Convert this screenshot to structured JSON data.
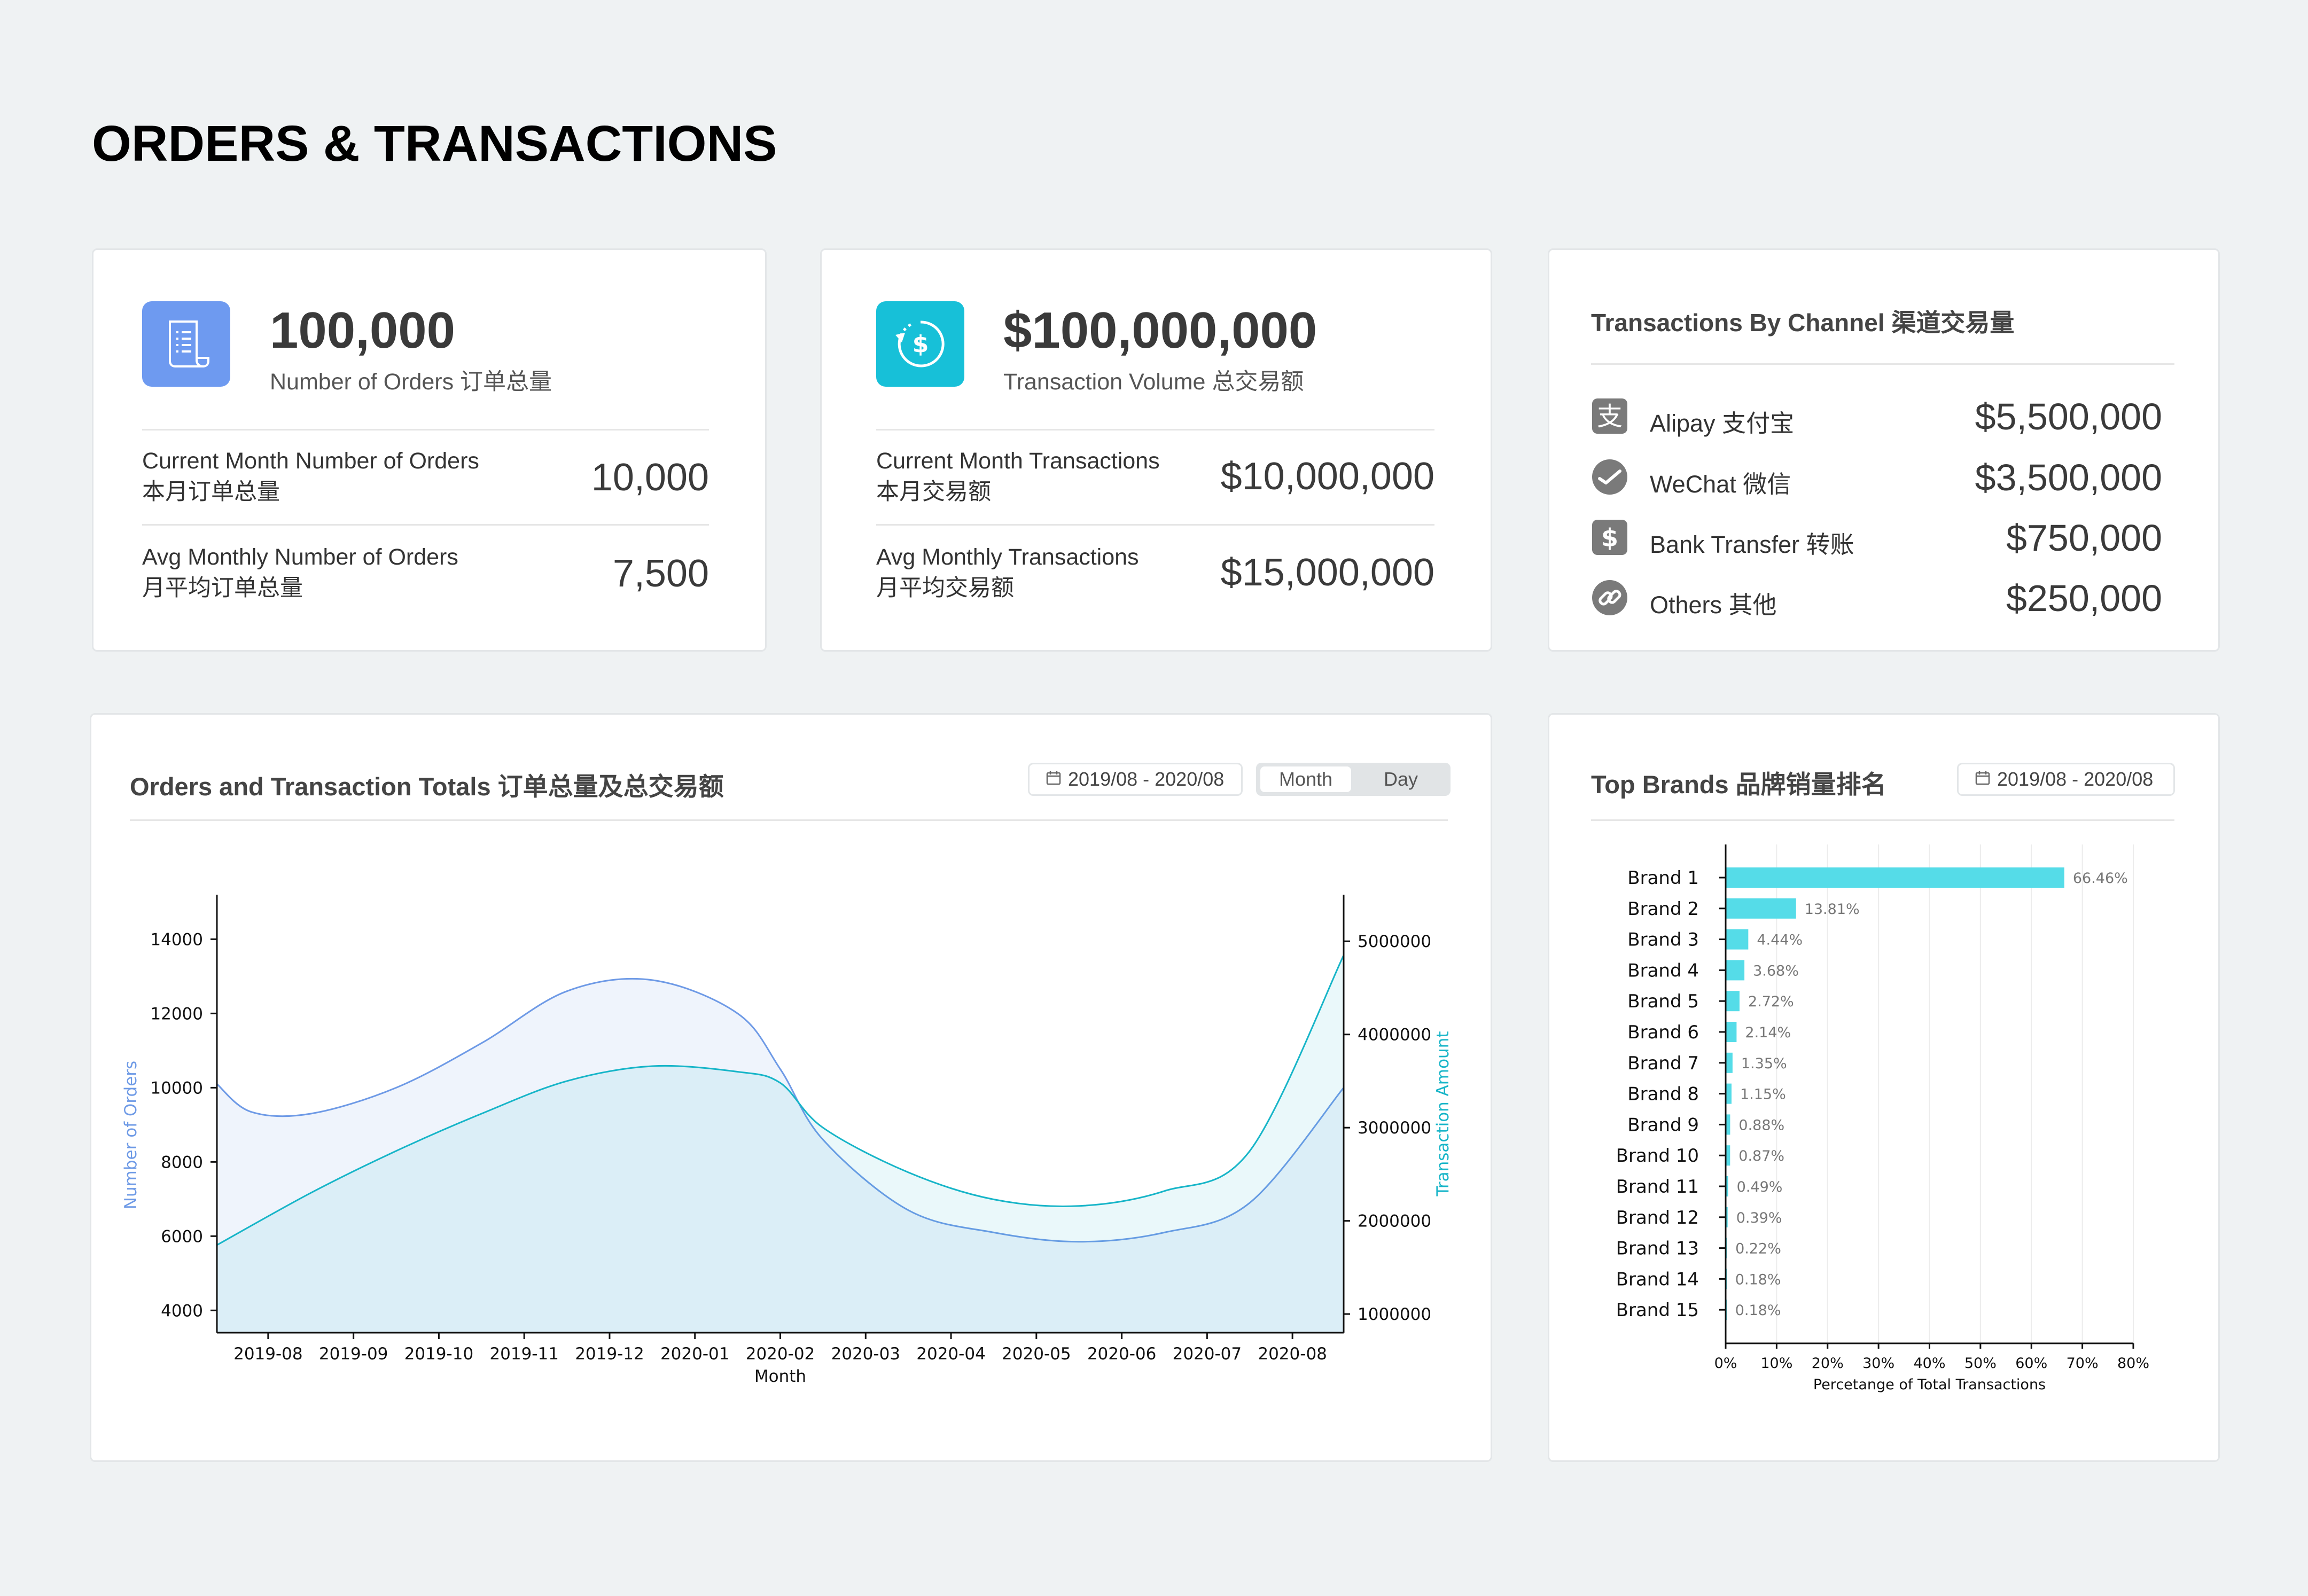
{
  "page_title": "ORDERS & TRANSACTIONS",
  "orders_card": {
    "total": "100,000",
    "total_label": "Number of Orders 订单总量",
    "rows": [
      {
        "label_en": "Current Month Number of Orders",
        "label_zh": "本月订单总量",
        "value": "10,000"
      },
      {
        "label_en": "Avg Monthly Number of Orders",
        "label_zh": "月平均订单总量",
        "value": "7,500"
      }
    ],
    "icon": "receipt-icon",
    "icon_color": "#6e9af0"
  },
  "volume_card": {
    "total": "$100,000,000",
    "total_label": "Transaction Volume 总交易额",
    "rows": [
      {
        "label_en": "Current Month Transactions",
        "label_zh": "本月交易额",
        "value": "$10,000,000"
      },
      {
        "label_en": "Avg Monthly Transactions",
        "label_zh": "月平均交易额",
        "value": "$15,000,000"
      }
    ],
    "icon": "dollar-cycle-icon",
    "icon_color": "#17c0d8"
  },
  "channel_card": {
    "title": "Transactions By Channel 渠道交易量",
    "items": [
      {
        "label": "Alipay 支付宝",
        "value": "$5,500,000",
        "icon": "alipay-icon"
      },
      {
        "label": "WeChat 微信",
        "value": "$3,500,000",
        "icon": "wechat-icon"
      },
      {
        "label": "Bank Transfer 转账",
        "value": "$750,000",
        "icon": "dollar-icon"
      },
      {
        "label": "Others 其他",
        "value": "$250,000",
        "icon": "link-icon"
      }
    ]
  },
  "totals_panel": {
    "title": "Orders and Transaction Totals 订单总量及总交易额",
    "date_range": "2019/08 - 2020/08",
    "toggle": {
      "options": [
        "Month",
        "Day"
      ],
      "selected": "Month"
    }
  },
  "brands_panel": {
    "title": "Top Brands 品牌销量排名",
    "date_range": "2019/08 - 2020/08"
  },
  "chart_data": [
    {
      "type": "area",
      "x": [
        "2019-08",
        "2019-09",
        "2019-10",
        "2019-11",
        "2019-12",
        "2020-01",
        "2020-02",
        "2020-03",
        "2020-04",
        "2020-05",
        "2020-06",
        "2020-07",
        "2020-08"
      ],
      "xticks": [
        "2019-08",
        "2019-09",
        "2019-10",
        "2019-11",
        "2019-12",
        "2020-01",
        "2020-02",
        "2020-03",
        "2020-04",
        "2020-05",
        "2020-06",
        "2020-07",
        "2020-08"
      ],
      "xlabel": "Month",
      "ylabel": "Number of Orders",
      "y2label": "Transaction Amount",
      "ylim": [
        3400,
        15200
      ],
      "y2lim": [
        800000,
        5500000
      ],
      "yticks": [
        4000,
        6000,
        8000,
        10000,
        12000,
        14000
      ],
      "y2ticks": [
        1000000,
        2000000,
        3000000,
        4000000,
        5000000
      ],
      "series": [
        {
          "name": "Number of Orders",
          "axis": "left",
          "color": "#6e9ae6",
          "x": [
            -0.6,
            -0.2,
            0.5,
            1.5,
            2.5,
            3.5,
            4.5,
            5.5,
            6.0,
            6.5,
            7.5,
            8.5,
            9.5,
            10.5,
            11.5,
            12.6
          ],
          "values": [
            10100,
            9350,
            9300,
            10000,
            11200,
            12600,
            12900,
            12000,
            10500,
            8600,
            6700,
            6100,
            5850,
            6100,
            6900,
            10000
          ]
        },
        {
          "name": "Transaction Amount",
          "axis": "right",
          "color": "#17b5c8",
          "x": [
            -0.6,
            0.5,
            1.5,
            2.5,
            3.5,
            4.5,
            5.5,
            6.0,
            6.5,
            7.5,
            8.5,
            9.5,
            10.5,
            11.5,
            12.6
          ],
          "values": [
            1740000,
            2300000,
            2750000,
            3150000,
            3500000,
            3660000,
            3600000,
            3480000,
            3000000,
            2520000,
            2230000,
            2160000,
            2320000,
            2750000,
            4850000
          ]
        }
      ]
    },
    {
      "type": "bar",
      "orientation": "horizontal",
      "categories": [
        "Brand 1",
        "Brand 2",
        "Brand 3",
        "Brand 4",
        "Brand 5",
        "Brand 6",
        "Brand 7",
        "Brand 8",
        "Brand 9",
        "Brand 10",
        "Brand 11",
        "Brand 12",
        "Brand 13",
        "Brand 14",
        "Brand 15"
      ],
      "values": [
        66.46,
        13.81,
        4.44,
        3.68,
        2.72,
        2.14,
        1.35,
        1.15,
        0.88,
        0.87,
        0.49,
        0.39,
        0.22,
        0.18,
        0.18
      ],
      "data_labels": [
        "66.46%",
        "13.81%",
        "4.44%",
        "3.68%",
        "2.72%",
        "2.14%",
        "1.35%",
        "1.15%",
        "0.88%",
        "0.87%",
        "0.49%",
        "0.39%",
        "0.22%",
        "0.18%",
        "0.18%"
      ],
      "xlabel": "Percetange of Total Transactions",
      "xlim": [
        0,
        80
      ],
      "xticks": [
        "0%",
        "10%",
        "20%",
        "30%",
        "40%",
        "50%",
        "60%",
        "70%",
        "80%"
      ],
      "grid": true,
      "color": "#55dce8"
    }
  ]
}
